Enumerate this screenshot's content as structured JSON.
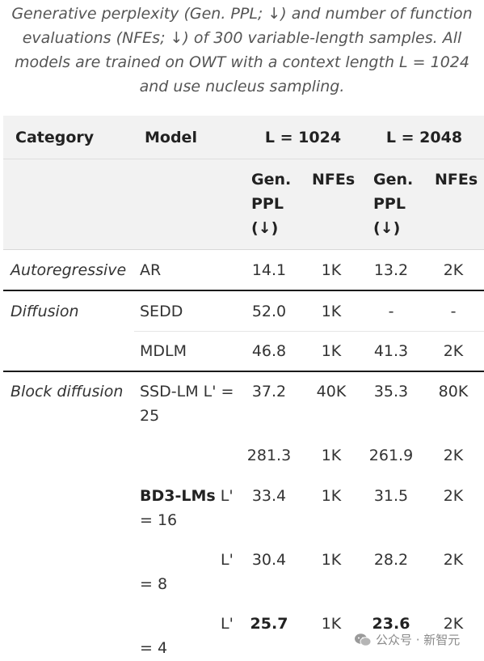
{
  "caption": [
    "Generative perplexity (Gen. PPL; ↓) and number of function",
    "evaluations (NFEs; ↓) of 300 variable-length samples. All",
    "models are trained on OWT with a context length L = 1024",
    "and use nucleus sampling."
  ],
  "header": {
    "category": "Category",
    "model": "Model",
    "l1024": "L = 1024",
    "l2048": "L = 2048",
    "genppl_lines": [
      "Gen.",
      "PPL",
      "(↓)"
    ],
    "nfes": "NFEs"
  },
  "rows": {
    "ar": {
      "category": "Autoregressive",
      "model": "AR",
      "v": [
        "14.1",
        "1K",
        "13.2",
        "2K"
      ]
    },
    "sedd": {
      "category": "Diffusion",
      "model": "SEDD",
      "v": [
        "52.0",
        "1K",
        "-",
        "-"
      ]
    },
    "mdlm": {
      "model": "MDLM",
      "v": [
        "46.8",
        "1K",
        "41.3",
        "2K"
      ]
    },
    "ssd1": {
      "category": "Block diffusion",
      "model_line1": "SSD-LM L' =",
      "model_line2": "25",
      "v": [
        "37.2",
        "40K",
        "35.3",
        "80K"
      ]
    },
    "ssd2": {
      "v": [
        "281.3",
        "1K",
        "261.9",
        "2K"
      ]
    },
    "bd16": {
      "model_bold": "BD3-LMs",
      "model_rest": " L'",
      "model_line2": "= 16",
      "v": [
        "33.4",
        "1K",
        "31.5",
        "2K"
      ]
    },
    "bd8": {
      "model_line1": "L'",
      "model_line2": "= 8",
      "v": [
        "30.4",
        "1K",
        "28.2",
        "2K"
      ]
    },
    "bd4": {
      "model_line1": "L'",
      "model_line2": "= 4",
      "v": [
        "25.7",
        "1K",
        "23.6",
        "2K"
      ]
    }
  },
  "watermark": "公众号 · 新智元"
}
